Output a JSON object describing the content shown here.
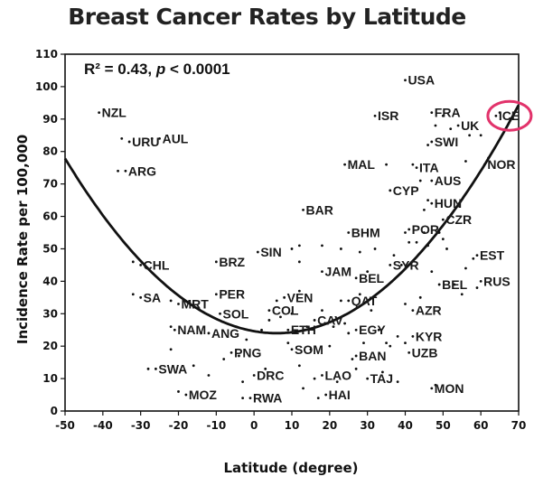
{
  "chart_data": {
    "type": "scatter",
    "title": "Breast Cancer Rates by Latitude",
    "xlabel": "Latitude (degree)",
    "ylabel": "Incidence Rate per 100,000",
    "xlim": [
      -50,
      70
    ],
    "ylim": [
      0,
      110
    ],
    "xticks": [
      "-50",
      "-40",
      "-30",
      "-20",
      "-10",
      "0",
      "10",
      "20",
      "30",
      "40",
      "50",
      "60",
      "70"
    ],
    "yticks": [
      "0",
      "10",
      "20",
      "30",
      "40",
      "50",
      "60",
      "70",
      "80",
      "90",
      "100",
      "110"
    ],
    "stat_r2": "R² = 0.43, ",
    "stat_p": "p",
    "stat_rest": " < 0.0001",
    "fit": {
      "type": "quadratic",
      "vertex_x": 6,
      "vertex_y": 24,
      "a": 0.01717
    },
    "highlight": {
      "label": "ICE",
      "color": "#e2336b"
    },
    "labeled_points": [
      {
        "label": "NZL",
        "x": -41,
        "y": 92
      },
      {
        "label": "URU",
        "x": -33,
        "y": 83
      },
      {
        "label": "AUL",
        "x": -25,
        "y": 84
      },
      {
        "label": "ARG",
        "x": -34,
        "y": 74
      },
      {
        "label": "CHL",
        "x": -30,
        "y": 45
      },
      {
        "label": "SA",
        "x": -30,
        "y": 35
      },
      {
        "label": "MRT",
        "x": -20,
        "y": 33
      },
      {
        "label": "NAM",
        "x": -21,
        "y": 25
      },
      {
        "label": "SWA",
        "x": -26,
        "y": 13
      },
      {
        "label": "MOZ",
        "x": -18,
        "y": 5
      },
      {
        "label": "ANG",
        "x": -12,
        "y": 24
      },
      {
        "label": "PER",
        "x": -10,
        "y": 36
      },
      {
        "label": "SOL",
        "x": -9,
        "y": 30
      },
      {
        "label": "BRZ",
        "x": -10,
        "y": 46
      },
      {
        "label": "PNG",
        "x": -6,
        "y": 18
      },
      {
        "label": "DRC",
        "x": 0,
        "y": 11
      },
      {
        "label": "RWA",
        "x": -1,
        "y": 4
      },
      {
        "label": "SIN",
        "x": 1,
        "y": 49
      },
      {
        "label": "VEN",
        "x": 8,
        "y": 35
      },
      {
        "label": "COL",
        "x": 4,
        "y": 31
      },
      {
        "label": "ETH",
        "x": 9,
        "y": 25
      },
      {
        "label": "SOM",
        "x": 10,
        "y": 19
      },
      {
        "label": "CAV",
        "x": 16,
        "y": 28
      },
      {
        "label": "LAO",
        "x": 18,
        "y": 11
      },
      {
        "label": "HAI",
        "x": 19,
        "y": 5
      },
      {
        "label": "BAR",
        "x": 13,
        "y": 62
      },
      {
        "label": "JAM",
        "x": 18,
        "y": 43
      },
      {
        "label": "BHM",
        "x": 25,
        "y": 55
      },
      {
        "label": "BEL",
        "x": 27,
        "y": 41
      },
      {
        "label": "QAT",
        "x": 25,
        "y": 34
      },
      {
        "label": "EGY",
        "x": 27,
        "y": 25
      },
      {
        "label": "BAN",
        "x": 27,
        "y": 17
      },
      {
        "label": "TAJ",
        "x": 30,
        "y": 10
      },
      {
        "label": "MAL",
        "x": 24,
        "y": 76
      },
      {
        "label": "ISR",
        "x": 32,
        "y": 91
      },
      {
        "label": "USA",
        "x": 40,
        "y": 102
      },
      {
        "label": "CYP",
        "x": 36,
        "y": 68
      },
      {
        "label": "SYR",
        "x": 36,
        "y": 45
      },
      {
        "label": "AZR",
        "x": 42,
        "y": 31
      },
      {
        "label": "KYR",
        "x": 42,
        "y": 23
      },
      {
        "label": "UZB",
        "x": 41,
        "y": 18
      },
      {
        "label": "POR",
        "x": 41,
        "y": 56
      },
      {
        "label": "ITA",
        "x": 43,
        "y": 75
      },
      {
        "label": "AUS",
        "x": 47,
        "y": 71
      },
      {
        "label": "HUN",
        "x": 47,
        "y": 64
      },
      {
        "label": "CZR",
        "x": 50,
        "y": 59
      },
      {
        "label": "SWI",
        "x": 47,
        "y": 83
      },
      {
        "label": "FRA",
        "x": 47,
        "y": 92
      },
      {
        "label": "UK",
        "x": 54,
        "y": 88
      },
      {
        "label": "ICE",
        "x": 64,
        "y": 91
      },
      {
        "label": "NOR",
        "x": 61,
        "y": 76
      },
      {
        "label": "EST",
        "x": 59,
        "y": 48
      },
      {
        "label": "RUS",
        "x": 60,
        "y": 40
      },
      {
        "label": "BEL",
        "x": 49,
        "y": 39
      },
      {
        "label": "MON",
        "x": 47,
        "y": 7
      }
    ],
    "unlabeled_points": [
      {
        "x": -35,
        "y": 84
      },
      {
        "x": -27,
        "y": 84
      },
      {
        "x": -36,
        "y": 74
      },
      {
        "x": -32,
        "y": 46
      },
      {
        "x": -32,
        "y": 36
      },
      {
        "x": -22,
        "y": 34
      },
      {
        "x": -22,
        "y": 26
      },
      {
        "x": -22,
        "y": 19
      },
      {
        "x": -28,
        "y": 13
      },
      {
        "x": -20,
        "y": 6
      },
      {
        "x": -14,
        "y": 24
      },
      {
        "x": -16,
        "y": 14
      },
      {
        "x": -12,
        "y": 11
      },
      {
        "x": -8,
        "y": 16
      },
      {
        "x": -4,
        "y": 17
      },
      {
        "x": -3,
        "y": 9
      },
      {
        "x": -2,
        "y": 22
      },
      {
        "x": -3,
        "y": 4
      },
      {
        "x": 2,
        "y": 25
      },
      {
        "x": 3,
        "y": 13
      },
      {
        "x": 4,
        "y": 28
      },
      {
        "x": 6,
        "y": 34
      },
      {
        "x": 7,
        "y": 29
      },
      {
        "x": 9,
        "y": 21
      },
      {
        "x": 10,
        "y": 30
      },
      {
        "x": 10,
        "y": 50
      },
      {
        "x": 12,
        "y": 51
      },
      {
        "x": 12,
        "y": 46
      },
      {
        "x": 12,
        "y": 37
      },
      {
        "x": 12,
        "y": 14
      },
      {
        "x": 13,
        "y": 7
      },
      {
        "x": 14,
        "y": 26
      },
      {
        "x": 15,
        "y": 19
      },
      {
        "x": 16,
        "y": 10
      },
      {
        "x": 17,
        "y": 4
      },
      {
        "x": 18,
        "y": 51
      },
      {
        "x": 18,
        "y": 31
      },
      {
        "x": 20,
        "y": 20
      },
      {
        "x": 21,
        "y": 26
      },
      {
        "x": 22,
        "y": 9
      },
      {
        "x": 23,
        "y": 50
      },
      {
        "x": 23,
        "y": 34
      },
      {
        "x": 24,
        "y": 27
      },
      {
        "x": 25,
        "y": 24
      },
      {
        "x": 26,
        "y": 16
      },
      {
        "x": 27,
        "y": 13
      },
      {
        "x": 28,
        "y": 49
      },
      {
        "x": 28,
        "y": 36
      },
      {
        "x": 29,
        "y": 21
      },
      {
        "x": 30,
        "y": 43
      },
      {
        "x": 31,
        "y": 31
      },
      {
        "x": 32,
        "y": 50
      },
      {
        "x": 33,
        "y": 25
      },
      {
        "x": 34,
        "y": 12
      },
      {
        "x": 35,
        "y": 76
      },
      {
        "x": 35,
        "y": 21
      },
      {
        "x": 36,
        "y": 20
      },
      {
        "x": 37,
        "y": 48
      },
      {
        "x": 38,
        "y": 9
      },
      {
        "x": 38,
        "y": 23
      },
      {
        "x": 39,
        "y": 45
      },
      {
        "x": 40,
        "y": 55
      },
      {
        "x": 40,
        "y": 33
      },
      {
        "x": 40,
        "y": 21
      },
      {
        "x": 41,
        "y": 52
      },
      {
        "x": 42,
        "y": 76
      },
      {
        "x": 43,
        "y": 52
      },
      {
        "x": 44,
        "y": 35
      },
      {
        "x": 44,
        "y": 71
      },
      {
        "x": 45,
        "y": 62
      },
      {
        "x": 45,
        "y": 55
      },
      {
        "x": 46,
        "y": 65
      },
      {
        "x": 46,
        "y": 51
      },
      {
        "x": 46,
        "y": 82
      },
      {
        "x": 47,
        "y": 43
      },
      {
        "x": 48,
        "y": 88
      },
      {
        "x": 48,
        "y": 8
      },
      {
        "x": 49,
        "y": 55
      },
      {
        "x": 50,
        "y": 53
      },
      {
        "x": 50,
        "y": 91
      },
      {
        "x": 51,
        "y": 50
      },
      {
        "x": 52,
        "y": 87
      },
      {
        "x": 53,
        "y": 39
      },
      {
        "x": 55,
        "y": 36
      },
      {
        "x": 56,
        "y": 77
      },
      {
        "x": 56,
        "y": 44
      },
      {
        "x": 57,
        "y": 85
      },
      {
        "x": 58,
        "y": 47
      },
      {
        "x": 59,
        "y": 38
      },
      {
        "x": 60,
        "y": 85
      },
      {
        "x": 62,
        "y": 78
      },
      {
        "x": 65,
        "y": 92
      }
    ]
  }
}
